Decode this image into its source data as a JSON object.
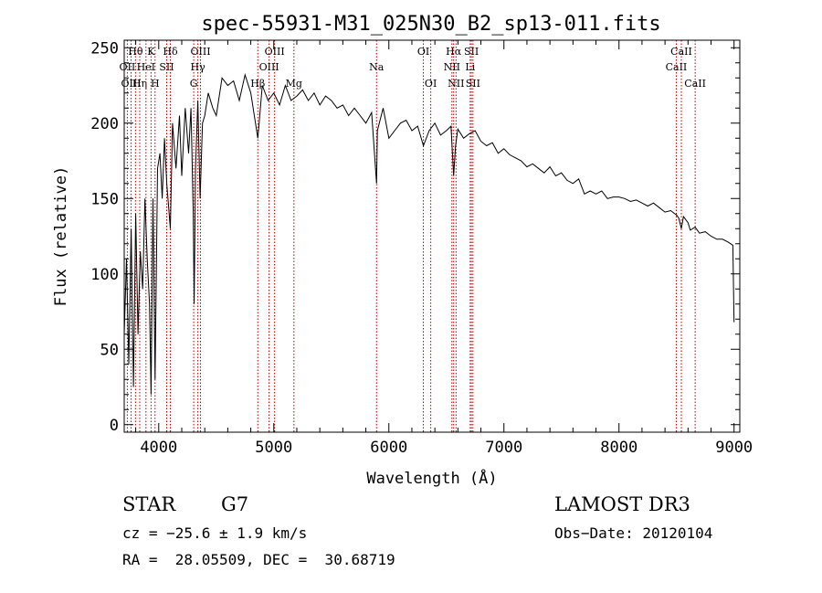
{
  "chart_data": {
    "type": "line",
    "title": "spec-55931-M31_025N30_B2_sp13-011.fits",
    "xlabel": "Wavelength (Å)",
    "ylabel": "Flux (relative)",
    "xlim": [
      3700,
      9050
    ],
    "ylim": [
      -5,
      255
    ],
    "xticks": [
      4000,
      5000,
      6000,
      7000,
      8000,
      9000
    ],
    "yticks": [
      0,
      50,
      100,
      150,
      200,
      250
    ],
    "series": [
      {
        "name": "spectrum",
        "x": [
          3700,
          3720,
          3740,
          3760,
          3780,
          3800,
          3820,
          3840,
          3860,
          3880,
          3900,
          3920,
          3933,
          3950,
          3968,
          3990,
          4010,
          4030,
          4050,
          4070,
          4101,
          4120,
          4150,
          4180,
          4200,
          4230,
          4260,
          4280,
          4300,
          4308,
          4320,
          4340,
          4360,
          4380,
          4400,
          4430,
          4470,
          4500,
          4550,
          4600,
          4650,
          4700,
          4750,
          4800,
          4861,
          4900,
          4950,
          5000,
          5050,
          5100,
          5150,
          5200,
          5250,
          5300,
          5350,
          5400,
          5450,
          5500,
          5550,
          5600,
          5650,
          5700,
          5750,
          5800,
          5850,
          5893,
          5900,
          5950,
          6000,
          6050,
          6100,
          6150,
          6200,
          6250,
          6300,
          6350,
          6400,
          6450,
          6500,
          6540,
          6563,
          6580,
          6600,
          6650,
          6700,
          6750,
          6800,
          6850,
          6900,
          6950,
          7000,
          7050,
          7100,
          7150,
          7200,
          7250,
          7300,
          7350,
          7400,
          7450,
          7500,
          7550,
          7600,
          7650,
          7700,
          7750,
          7800,
          7850,
          7900,
          7950,
          8000,
          8050,
          8100,
          8150,
          8200,
          8250,
          8300,
          8350,
          8400,
          8450,
          8500,
          8520,
          8542,
          8560,
          8600,
          8620,
          8662,
          8700,
          8750,
          8800,
          8850,
          8900,
          8950,
          8990,
          9000
        ],
        "values": [
          60,
          110,
          40,
          130,
          25,
          140,
          60,
          115,
          90,
          150,
          110,
          80,
          20,
          150,
          30,
          170,
          180,
          150,
          190,
          160,
          130,
          200,
          170,
          205,
          165,
          210,
          180,
          210,
          140,
          80,
          170,
          215,
          150,
          200,
          205,
          220,
          210,
          205,
          230,
          225,
          228,
          215,
          232,
          220,
          190,
          225,
          215,
          220,
          212,
          225,
          215,
          218,
          222,
          215,
          220,
          212,
          218,
          215,
          210,
          212,
          205,
          210,
          205,
          200,
          207,
          160,
          195,
          210,
          190,
          195,
          200,
          202,
          195,
          198,
          185,
          195,
          200,
          192,
          195,
          198,
          165,
          185,
          196,
          190,
          193,
          195,
          188,
          185,
          187,
          180,
          183,
          179,
          177,
          175,
          171,
          173,
          170,
          167,
          171,
          165,
          167,
          162,
          160,
          163,
          153,
          155,
          153,
          155,
          150,
          151,
          151,
          150,
          148,
          149,
          147,
          145,
          147,
          144,
          141,
          142,
          139,
          137,
          130,
          138,
          134,
          129,
          131,
          127,
          128,
          125,
          123,
          123,
          121,
          119,
          68
        ]
      }
    ],
    "lines": [
      {
        "name": "Hθ",
        "x": 3798,
        "row": 0
      },
      {
        "name": "OII",
        "x": 3727,
        "row": 1
      },
      {
        "name": "OIII",
        "x": 3760,
        "row": 2
      },
      {
        "name": "Hη",
        "x": 3835,
        "row": 2
      },
      {
        "name": "HeI",
        "x": 3889,
        "row": 1
      },
      {
        "name": "K",
        "x": 3933,
        "row": 0
      },
      {
        "name": "SII",
        "x": 4069,
        "row": 1
      },
      {
        "name": "H",
        "x": 3968,
        "row": 2
      },
      {
        "name": "Hδ",
        "x": 4101,
        "row": 0
      },
      {
        "name": "OIII",
        "x": 4363,
        "row": 0
      },
      {
        "name": "Hγ",
        "x": 4340,
        "row": 1
      },
      {
        "name": "G",
        "x": 4304,
        "row": 2
      },
      {
        "name": "Hβ",
        "x": 4861,
        "row": 2
      },
      {
        "name": "OIII",
        "x": 5007,
        "row": 0
      },
      {
        "name": "OIII",
        "x": 4959,
        "row": 1
      },
      {
        "name": "Mg",
        "x": 5175,
        "row": 2
      },
      {
        "name": "Na",
        "x": 5893,
        "row": 1
      },
      {
        "name": "OI",
        "x": 6300,
        "row": 0
      },
      {
        "name": "OI",
        "x": 6364,
        "row": 2
      },
      {
        "name": "Hα",
        "x": 6563,
        "row": 0
      },
      {
        "name": "NII",
        "x": 6548,
        "row": 1
      },
      {
        "name": "NII",
        "x": 6584,
        "row": 2
      },
      {
        "name": "SII",
        "x": 6717,
        "row": 0
      },
      {
        "name": "Li",
        "x": 6707,
        "row": 1
      },
      {
        "name": "SII",
        "x": 6731,
        "row": 2
      },
      {
        "name": "CaII",
        "x": 8542,
        "row": 0
      },
      {
        "name": "CaII",
        "x": 8498,
        "row": 1
      },
      {
        "name": "CaII",
        "x": 8662,
        "row": 2
      }
    ]
  },
  "info": {
    "object_class": "STAR",
    "subclass": "G7",
    "cz": "cz = −25.6 ± 1.9 km/s",
    "coords": "RA =  28.05509, DEC =  30.68719",
    "survey": "LAMOST DR3",
    "obs_date": "Obs−Date: 20120104"
  }
}
